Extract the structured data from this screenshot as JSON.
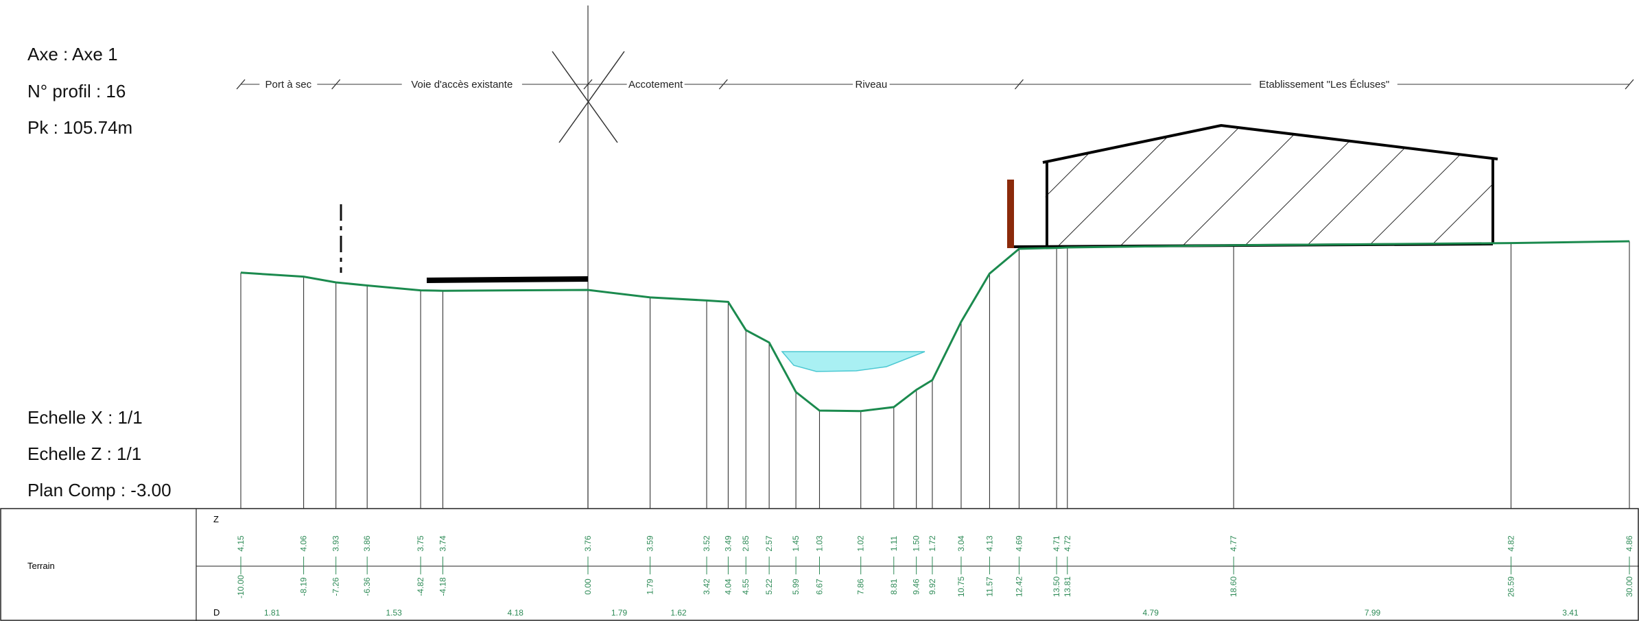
{
  "header": {
    "axe": "Axe : Axe 1",
    "profil": "N° profil : 16",
    "pk": "Pk : 105.74m"
  },
  "scale": {
    "echelle_x": "Echelle X : 1/1",
    "echelle_z": "Echelle Z : 1/1",
    "plan_comp": "Plan Comp : -3.00"
  },
  "zones": [
    {
      "label": "Port à sec",
      "from": -10.0,
      "to": -7.26
    },
    {
      "label": "Voie d'accès existante",
      "from": -7.26,
      "to": 0.0
    },
    {
      "label": "Accotement",
      "from": 0.0,
      "to": 3.9
    },
    {
      "label": "Riveau",
      "from": 3.9,
      "to": 12.42
    },
    {
      "label": "Etablissement \"Les Écluses\"",
      "from": 12.42,
      "to": 30.0
    }
  ],
  "table": {
    "row_label": "Terrain",
    "z_header": "Z",
    "d_header": "D",
    "points": [
      {
        "d": "-10.00",
        "z": "4.15",
        "x": -10.0
      },
      {
        "d": "-8.19",
        "z": "4.06",
        "x": -8.19
      },
      {
        "d": "-7.26",
        "z": "3.93",
        "x": -7.26
      },
      {
        "d": "-6.36",
        "z": "3.86",
        "x": -6.36
      },
      {
        "d": "-4.82",
        "z": "3.75",
        "x": -4.82
      },
      {
        "d": "-4.18",
        "z": "3.74",
        "x": -4.18
      },
      {
        "d": "0.00",
        "z": "3.76",
        "x": 0.0
      },
      {
        "d": "1.79",
        "z": "3.59",
        "x": 1.79
      },
      {
        "d": "3.42",
        "z": "3.52",
        "x": 3.42
      },
      {
        "d": "4.04",
        "z": "3.49",
        "x": 4.04
      },
      {
        "d": "4.55",
        "z": "2.85",
        "x": 4.55
      },
      {
        "d": "5.22",
        "z": "2.57",
        "x": 5.22
      },
      {
        "d": "5.99",
        "z": "1.45",
        "x": 5.99
      },
      {
        "d": "6.67",
        "z": "1.03",
        "x": 6.67
      },
      {
        "d": "7.86",
        "z": "1.02",
        "x": 7.86
      },
      {
        "d": "8.81",
        "z": "1.11",
        "x": 8.81
      },
      {
        "d": "9.46",
        "z": "1.50",
        "x": 9.46
      },
      {
        "d": "9.92",
        "z": "1.72",
        "x": 9.92
      },
      {
        "d": "10.75",
        "z": "3.04",
        "x": 10.75
      },
      {
        "d": "11.57",
        "z": "4.13",
        "x": 11.57
      },
      {
        "d": "12.42",
        "z": "4.69",
        "x": 12.42
      },
      {
        "d": "13.50",
        "z": "4.71",
        "x": 13.5
      },
      {
        "d": "13.81",
        "z": "4.72",
        "x": 13.81
      },
      {
        "d": "18.60",
        "z": "4.77",
        "x": 18.6
      },
      {
        "d": "26.59",
        "z": "4.82",
        "x": 26.59
      },
      {
        "d": "30.00",
        "z": "4.86",
        "x": 30.0
      }
    ],
    "partials": [
      {
        "value": "1.81",
        "x": -9.1
      },
      {
        "value": "1.53",
        "x": -5.59
      },
      {
        "value": "4.18",
        "x": -2.09
      },
      {
        "value": "1.79",
        "x": 0.9
      },
      {
        "value": "1.62",
        "x": 2.61
      },
      {
        "value": "4.79",
        "x": 16.21
      },
      {
        "value": "7.99",
        "x": 22.6
      },
      {
        "value": "3.41",
        "x": 28.3
      }
    ]
  },
  "colors": {
    "terrain": "#1b8a4e",
    "value_text": "#2e8b57",
    "water_fill": "#a9f0f3",
    "water_edge": "#4cc8d2",
    "post": "#8b2a0a",
    "structure": "#000000",
    "line": "#333333"
  },
  "icons": {
    "axis_marker": "axis-cross-icon",
    "hatch": "building-hatch-icon"
  }
}
